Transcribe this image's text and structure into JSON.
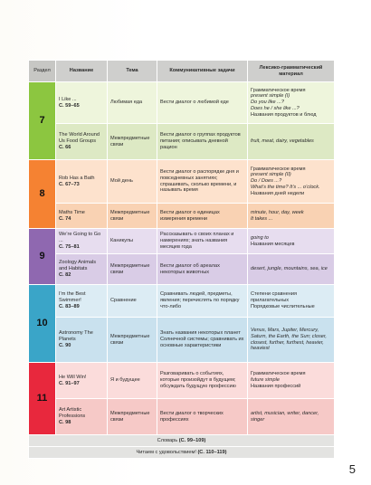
{
  "header": {
    "section": "Раздел",
    "name": "Название",
    "topic": "Тема",
    "tasks": "Коммуникативные задачи",
    "lexgram": "Лексико-грамматический материал"
  },
  "sections": [
    {
      "number": "7",
      "rows": [
        {
          "name": "I Like ...",
          "pages": "С. 59–65",
          "topic": "Любимая еда",
          "tasks": "Вести диалог о любимой еде",
          "lex": [
            {
              "t": "Грамматическое время",
              "s": "plain"
            },
            {
              "t": "present simple (I)",
              "s": "ital"
            },
            {
              "t": "Do you like ...?",
              "s": "ital"
            },
            {
              "t": "Does he / she like ...?",
              "s": "ital"
            },
            {
              "t": "Названия продуктов и блюд",
              "s": "plain"
            }
          ]
        },
        {
          "name": "The World Around Us Food Groups",
          "pages": "С. 66",
          "topic": "Межпредметные связи",
          "tasks": "Вести диалог о группах продуктов питания; описывать дневной рацион",
          "lex": [
            {
              "t": "fruit, meat, dairy, vegetables",
              "s": "ital"
            }
          ]
        }
      ]
    },
    {
      "number": "8",
      "rows": [
        {
          "name": "Rob Has a Bath",
          "pages": "С. 67–73",
          "topic": "Мой день",
          "tasks": "Вести диалог о распорядке дня и повседневных занятиях; спрашивать, сколько времени, и называть время",
          "lex": [
            {
              "t": "Грамматическое время",
              "s": "plain"
            },
            {
              "t": "present simple (II)",
              "s": "ital"
            },
            {
              "t": "Do / Does ...?",
              "s": "ital"
            },
            {
              "t": "What’s the time? It’s ... o’clock.",
              "s": "ital"
            },
            {
              "t": "Названия дней недели",
              "s": "plain"
            }
          ]
        },
        {
          "name": "Maths Time",
          "pages": "С. 74",
          "topic": "Межпредметные связи",
          "tasks": "Вести диалог о единицах измерения времени",
          "lex": [
            {
              "t": "minute, hour, day, week",
              "s": "ital"
            },
            {
              "t": "It takes ...",
              "s": "ital"
            }
          ]
        }
      ]
    },
    {
      "number": "9",
      "rows": [
        {
          "name": "We’re Going to Go ...",
          "pages": "С. 75–81",
          "topic": "Каникулы",
          "tasks": "Рассказывать о своих планах и намерениях; знать названия месяцев года",
          "lex": [
            {
              "t": "going to",
              "s": "ital"
            },
            {
              "t": "Названия месяцев",
              "s": "plain"
            }
          ]
        },
        {
          "name": "Zoology Animals and Habitats",
          "pages": "С. 82",
          "topic": "Межпредметные связи",
          "tasks": "Вести диалог об ареалах некоторых животных",
          "lex": [
            {
              "t": "desert, jungle, mountains, sea, ice",
              "s": "ital"
            }
          ]
        }
      ]
    },
    {
      "number": "10",
      "rows": [
        {
          "name": "I’m the Best Swimmer!",
          "pages": "С. 83–89",
          "topic": "Сравнение",
          "tasks": "Сравнивать людей, предметы, явления; перечислять по порядку что-либо",
          "lex": [
            {
              "t": "Степени сравнения прилагательных",
              "s": "plain"
            },
            {
              "t": "Порядковые числительные",
              "s": "plain"
            }
          ]
        },
        {
          "name": "Astronomy The Planets",
          "pages": "С. 90",
          "topic": "Межпредметные связи",
          "tasks": "Знать названия некоторых планет Солнечной системы; сравнивать их основные характеристики",
          "lex": [
            {
              "t": "Venus, Mars, Jupiter, Mercury, Saturn, the Earth, the Sun; closer, closest, further, furthest, heavier, heaviest",
              "s": "ital"
            }
          ]
        }
      ]
    },
    {
      "number": "11",
      "rows": [
        {
          "name": "He Will Win!",
          "pages": "С. 91–97",
          "topic": "Я и будущее",
          "tasks": "Разговаривать о событиях, которые произойдут в будущем; обсуждать будущую профессию",
          "lex": [
            {
              "t": "Грамматическое время",
              "s": "plain"
            },
            {
              "t": "future simple",
              "s": "ital"
            },
            {
              "t": "Названия профессий",
              "s": "plain"
            }
          ]
        },
        {
          "name": "Art Artistic Professions",
          "pages": "С. 98",
          "topic": "Межпредметные связи",
          "tasks": "Вести диалог о творческих профессиях",
          "lex": [
            {
              "t": "artist, musician, writer, dancer, singer",
              "s": "ital"
            }
          ]
        }
      ]
    }
  ],
  "footer": {
    "dictionary_label": "Словарь",
    "dictionary_pages": "(С. 99–109)",
    "reading_label": "Читаем с удовольствием!",
    "reading_pages": "(С. 110–119)"
  },
  "page_number": "5",
  "colors": {
    "section_7": "#8cc640",
    "section_8": "#f58232",
    "section_9": "#8f68b0",
    "section_10": "#3aa5c8",
    "section_11": "#e8283d"
  }
}
